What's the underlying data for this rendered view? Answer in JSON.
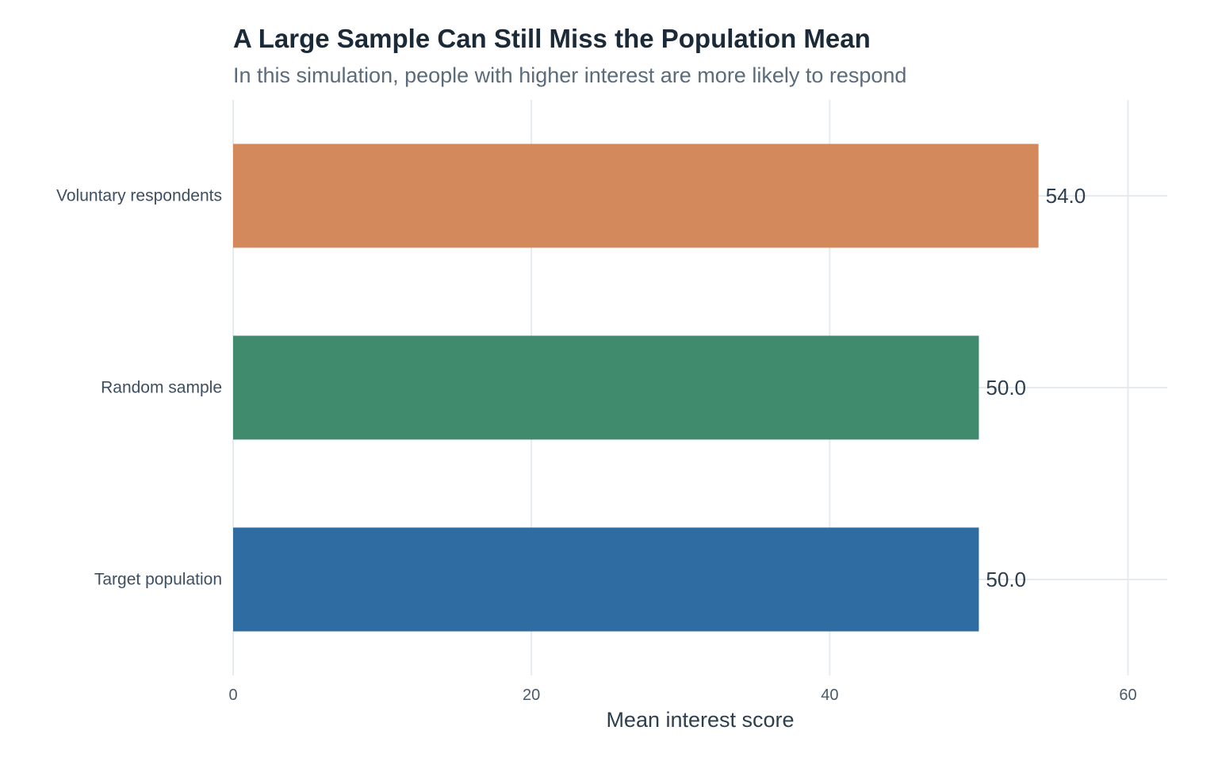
{
  "chart_data": {
    "type": "bar",
    "orientation": "horizontal",
    "title": "A Large Sample Can Still Miss the Population Mean",
    "subtitle": "In this simulation, people with higher interest are more likely to respond",
    "xlabel": "Mean interest score",
    "ylabel": "",
    "xlim": [
      0,
      62.5
    ],
    "xticks": [
      0,
      20,
      40,
      60
    ],
    "grid": true,
    "categories": [
      "Target population",
      "Random sample",
      "Voluntary respondents"
    ],
    "values": [
      50.0,
      50.0,
      54.0
    ],
    "data_labels": [
      "50.0",
      "50.0",
      "54.0"
    ],
    "colors": [
      "#2e6ca1",
      "#408b6e",
      "#d3895c"
    ],
    "gridline_color": "#e6ebef",
    "text_color": "#2d3e4f"
  }
}
